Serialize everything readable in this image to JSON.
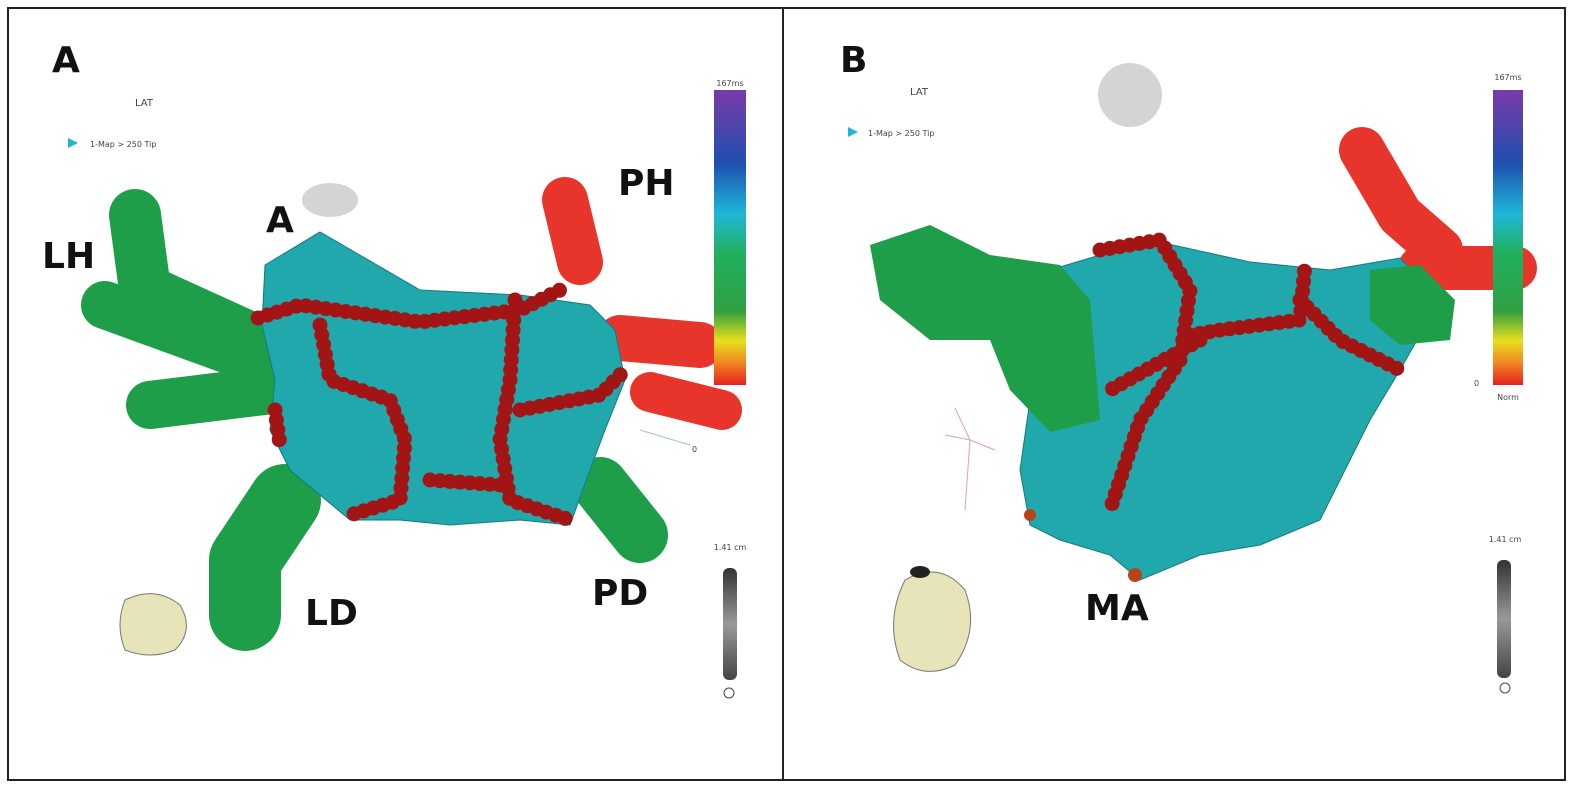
{
  "panels": [
    {
      "label": "A",
      "map_type": "LAT",
      "map_name": "1-Map > 250 Tip",
      "colorbar_top": "167ms",
      "axis_label": "0",
      "scale": "1.41 cm",
      "structures": [
        "LH",
        "A",
        "PH",
        "LD",
        "PD"
      ]
    },
    {
      "label": "B",
      "map_type": "LAT",
      "map_name": "1-Map > 250 Tip",
      "colorbar_top": "167ms",
      "colorbar_bottom": "Norm",
      "axis_label": "0",
      "scale": "1.41 cm",
      "structures": [
        "MA"
      ]
    }
  ]
}
